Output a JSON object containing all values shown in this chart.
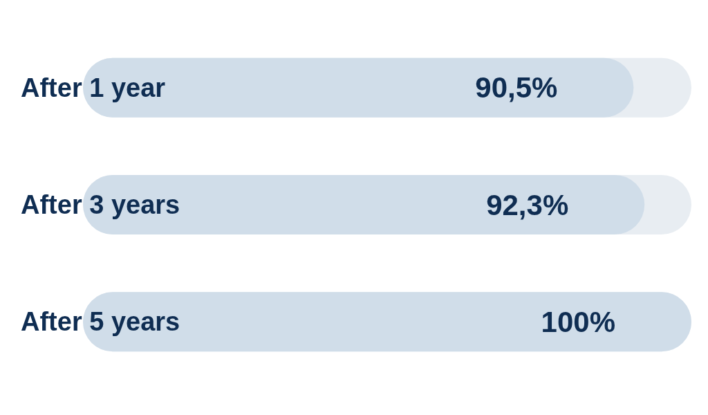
{
  "chart_data": {
    "type": "bar",
    "orientation": "horizontal",
    "categories": [
      "After 1 year",
      "After 3 years",
      "After 5 years"
    ],
    "values": [
      90.5,
      92.3,
      100
    ],
    "value_labels": [
      "90,5%",
      "92,3%",
      "100%"
    ],
    "color": "#d0dde9",
    "xlim": [
      0,
      100
    ]
  }
}
